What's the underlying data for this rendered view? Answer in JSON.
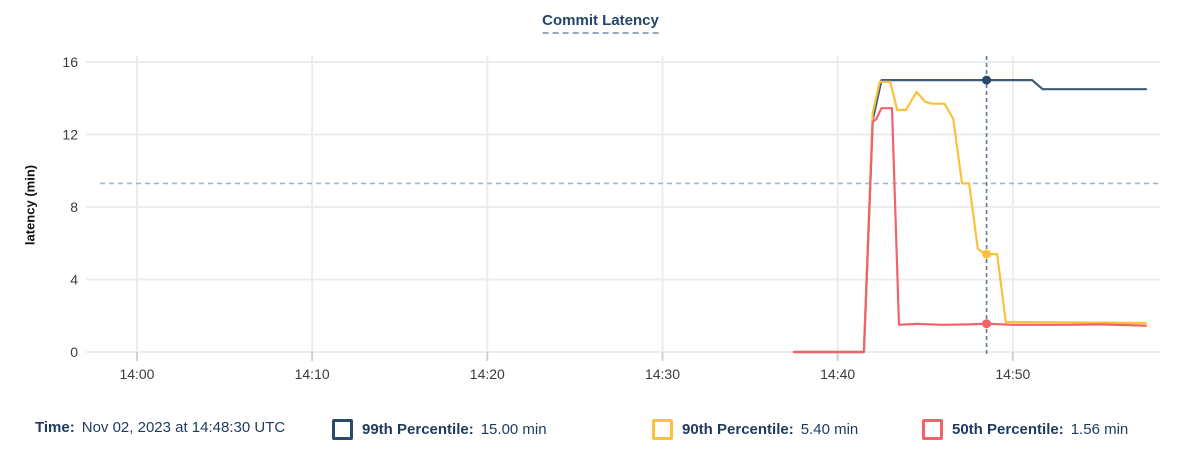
{
  "title": "Commit Latency",
  "y_axis_title": "latency (min)",
  "legend": {
    "time": {
      "label": "Time:",
      "value": "Nov 02, 2023 at 14:48:30 UTC"
    },
    "items": [
      {
        "key": "99th",
        "label": "99th Percentile:",
        "value": "15.00 min",
        "color": "#2b4a6b"
      },
      {
        "key": "90th",
        "label": "90th Percentile:",
        "value": "5.40 min",
        "color": "#fbc13c"
      },
      {
        "key": "50th",
        "label": "50th Percentile:",
        "value": "1.56 min",
        "color": "#f1636b"
      }
    ]
  },
  "chart_data": {
    "type": "line",
    "title": "Commit Latency",
    "xlabel": "",
    "ylabel": "latency (min)",
    "x_unit": "minutes after 14:00 UTC",
    "xlim": [
      -2.11,
      58.4
    ],
    "ylim": [
      0,
      16.33
    ],
    "grid": true,
    "y_ticks": [
      0,
      4,
      8,
      12,
      16
    ],
    "x_ticks": [
      {
        "t": 0,
        "label": "14:00"
      },
      {
        "t": 10,
        "label": "14:10"
      },
      {
        "t": 20,
        "label": "14:20"
      },
      {
        "t": 30,
        "label": "14:30"
      },
      {
        "t": 40,
        "label": "14:40"
      },
      {
        "t": 50,
        "label": "14:50"
      }
    ],
    "threshold_value": 9.3,
    "cursor": {
      "t": 48.5,
      "time_label": "Nov 02, 2023 at 14:48:30 UTC"
    },
    "series": [
      {
        "name": "99th Percentile",
        "color": "#3e5c7a",
        "marker_color": "#2b4a6b",
        "marker_value": 15.0,
        "points": [
          [
            37.5,
            0
          ],
          [
            41.5,
            0
          ],
          [
            42,
            12.8
          ],
          [
            42.5,
            15
          ],
          [
            51.1,
            15
          ],
          [
            51.7,
            14.5
          ],
          [
            57.6,
            14.5
          ]
        ]
      },
      {
        "name": "90th Percentile",
        "color": "#fbc13c",
        "marker_color": "#fbc13c",
        "marker_value": 5.4,
        "points": [
          [
            37.5,
            0
          ],
          [
            41.5,
            0
          ],
          [
            42,
            13.2
          ],
          [
            42.4,
            14.9
          ],
          [
            43,
            14.9
          ],
          [
            43.4,
            13.35
          ],
          [
            43.9,
            13.35
          ],
          [
            44.5,
            14.35
          ],
          [
            45,
            13.8
          ],
          [
            45.4,
            13.7
          ],
          [
            46.1,
            13.7
          ],
          [
            46.6,
            12.85
          ],
          [
            47.1,
            9.3
          ],
          [
            47.5,
            9.3
          ],
          [
            48,
            5.7
          ],
          [
            48.4,
            5.4
          ],
          [
            49.1,
            5.4
          ],
          [
            49.6,
            1.66
          ],
          [
            57.6,
            1.6
          ]
        ]
      },
      {
        "name": "50th Percentile",
        "color": "#f1636b",
        "marker_color": "#f1636b",
        "marker_value": 1.56,
        "points": [
          [
            37.5,
            0
          ],
          [
            41.5,
            0
          ],
          [
            42,
            12.7
          ],
          [
            42.2,
            12.85
          ],
          [
            42.5,
            13.45
          ],
          [
            43.1,
            13.45
          ],
          [
            43.5,
            1.5
          ],
          [
            44.5,
            1.55
          ],
          [
            46,
            1.5
          ],
          [
            47.5,
            1.52
          ],
          [
            48.5,
            1.56
          ],
          [
            50,
            1.5
          ],
          [
            53,
            1.5
          ],
          [
            55,
            1.52
          ],
          [
            57.6,
            1.45
          ]
        ]
      }
    ],
    "style": {
      "grid_color": "#ececec",
      "tick_color": "#d0d0d0",
      "threshold_color": "#a3b7c6",
      "cursor_color": "#5c7b98"
    }
  }
}
